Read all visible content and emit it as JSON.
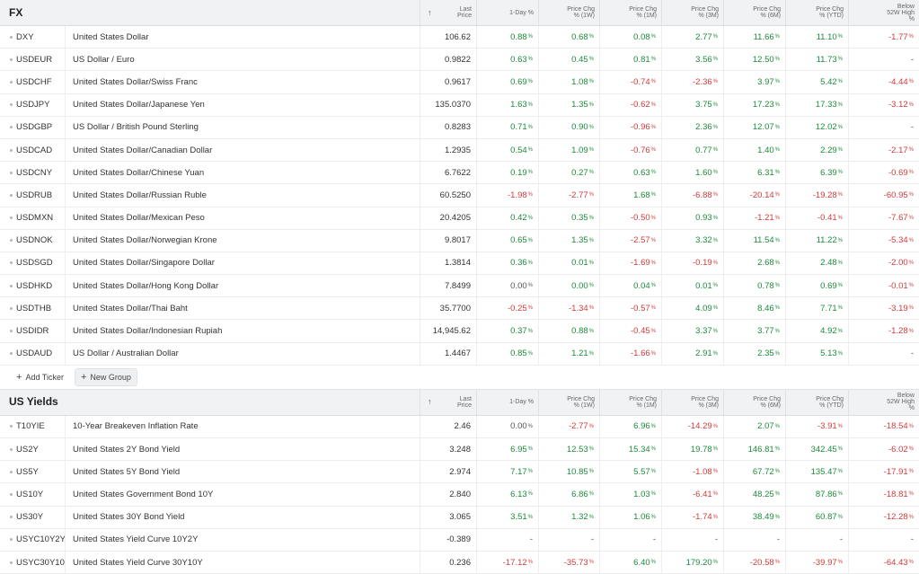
{
  "columns": {
    "last": "Last\nPrice",
    "d1": "1-Day %",
    "w1": "Price Chg\n% (1W)",
    "m1": "Price Chg\n% (1M)",
    "m3": "Price Chg\n% (3M)",
    "m6": "Price Chg\n% (6M)",
    "ytd": "Price Chg\n% (YTD)",
    "below52": "Below\n52W High\n%",
    "sort_icon": "↑"
  },
  "fx": {
    "title": "FX",
    "rows": [
      {
        "t": "DXY",
        "n": "United States Dollar",
        "p": "106.62",
        "v": [
          "0.88",
          "0.68",
          "0.08",
          "2.77",
          "11.66",
          "11.10",
          "-1.77"
        ]
      },
      {
        "t": "USDEUR",
        "n": "US Dollar / Euro",
        "p": "0.9822",
        "v": [
          "0.63",
          "0.45",
          "0.81",
          "3.56",
          "12.50",
          "11.73",
          "-"
        ]
      },
      {
        "t": "USDCHF",
        "n": "United States Dollar/Swiss Franc",
        "p": "0.9617",
        "v": [
          "0.69",
          "1.08",
          "-0.74",
          "-2.36",
          "3.97",
          "5.42",
          "-4.44"
        ]
      },
      {
        "t": "USDJPY",
        "n": "United States Dollar/Japanese Yen",
        "p": "135.0370",
        "v": [
          "1.63",
          "1.35",
          "-0.62",
          "3.75",
          "17.23",
          "17.33",
          "-3.12"
        ]
      },
      {
        "t": "USDGBP",
        "n": "US Dollar / British Pound Sterling",
        "p": "0.8283",
        "v": [
          "0.71",
          "0.90",
          "-0.96",
          "2.36",
          "12.07",
          "12.02",
          "-"
        ]
      },
      {
        "t": "USDCAD",
        "n": "United States Dollar/Canadian Dollar",
        "p": "1.2935",
        "v": [
          "0.54",
          "1.09",
          "-0.76",
          "0.77",
          "1.40",
          "2.29",
          "-2.17"
        ]
      },
      {
        "t": "USDCNY",
        "n": "United States Dollar/Chinese Yuan",
        "p": "6.7622",
        "v": [
          "0.19",
          "0.27",
          "0.63",
          "1.60",
          "6.31",
          "6.39",
          "-0.69"
        ]
      },
      {
        "t": "USDRUB",
        "n": "United States Dollar/Russian Ruble",
        "p": "60.5250",
        "v": [
          "-1.98",
          "-2.77",
          "1.68",
          "-6.88",
          "-20.14",
          "-19.28",
          "-60.95"
        ]
      },
      {
        "t": "USDMXN",
        "n": "United States Dollar/Mexican Peso",
        "p": "20.4205",
        "v": [
          "0.42",
          "0.35",
          "-0.50",
          "0.93",
          "-1.21",
          "-0.41",
          "-7.67"
        ]
      },
      {
        "t": "USDNOK",
        "n": "United States Dollar/Norwegian Krone",
        "p": "9.8017",
        "v": [
          "0.65",
          "1.35",
          "-2.57",
          "3.32",
          "11.54",
          "11.22",
          "-5.34"
        ]
      },
      {
        "t": "USDSGD",
        "n": "United States Dollar/Singapore Dollar",
        "p": "1.3814",
        "v": [
          "0.36",
          "0.01",
          "-1.69",
          "-0.19",
          "2.68",
          "2.48",
          "-2.00"
        ]
      },
      {
        "t": "USDHKD",
        "n": "United States Dollar/Hong Kong Dollar",
        "p": "7.8499",
        "v": [
          "0.00",
          "0.00",
          "0.04",
          "0.01",
          "0.78",
          "0.69",
          "-0.01"
        ]
      },
      {
        "t": "USDTHB",
        "n": "United States Dollar/Thai Baht",
        "p": "35.7700",
        "v": [
          "-0.25",
          "-1.34",
          "-0.57",
          "4.09",
          "8.46",
          "7.71",
          "-3.19"
        ]
      },
      {
        "t": "USDIDR",
        "n": "United States Dollar/Indonesian Rupiah",
        "p": "14,945.62",
        "v": [
          "0.37",
          "0.88",
          "-0.45",
          "3.37",
          "3.77",
          "4.92",
          "-1.28"
        ]
      },
      {
        "t": "USDAUD",
        "n": "US Dollar / Australian Dollar",
        "p": "1.4467",
        "v": [
          "0.85",
          "1.21",
          "-1.66",
          "2.91",
          "2.35",
          "5.13",
          "-"
        ]
      }
    ],
    "add_ticker": "Add Ticker",
    "new_group": "New Group"
  },
  "yields": {
    "title": "US Yields",
    "rows": [
      {
        "t": "T10YIE",
        "n": "10-Year Breakeven Inflation Rate",
        "p": "2.46",
        "v": [
          "0.00",
          "-2.77",
          "6.96",
          "-14.29",
          "2.07",
          "-3.91",
          "-18.54"
        ]
      },
      {
        "t": "US2Y",
        "n": "United States 2Y Bond Yield",
        "p": "3.248",
        "v": [
          "6.95",
          "12.53",
          "15.34",
          "19.78",
          "146.81",
          "342.45",
          "-6.02"
        ]
      },
      {
        "t": "US5Y",
        "n": "United States 5Y Bond Yield",
        "p": "2.974",
        "v": [
          "7.17",
          "10.85",
          "5.57",
          "-1.08",
          "67.72",
          "135.47",
          "-17.91"
        ]
      },
      {
        "t": "US10Y",
        "n": "United States Government Bond 10Y",
        "p": "2.840",
        "v": [
          "6.13",
          "6.86",
          "1.03",
          "-6.41",
          "48.25",
          "87.86",
          "-18.81"
        ]
      },
      {
        "t": "US30Y",
        "n": "United States 30Y Bond Yield",
        "p": "3.065",
        "v": [
          "3.51",
          "1.32",
          "1.06",
          "-1.74",
          "38.49",
          "60.87",
          "-12.28"
        ]
      },
      {
        "t": "USYC10Y2Y",
        "n": "United States Yield Curve 10Y2Y",
        "p": "-0.389",
        "v": [
          "-",
          "-",
          "-",
          "-",
          "-",
          "-",
          "-"
        ]
      },
      {
        "t": "USYC30Y10Y",
        "n": "United States Yield Curve 30Y10Y",
        "p": "0.236",
        "v": [
          "-17.12",
          "-35.73",
          "6.40",
          "179.20",
          "-20.58",
          "-39.97",
          "-64.43"
        ]
      }
    ]
  },
  "colors": {
    "positive": "#1e8a3c",
    "negative": "#d23b3b"
  }
}
